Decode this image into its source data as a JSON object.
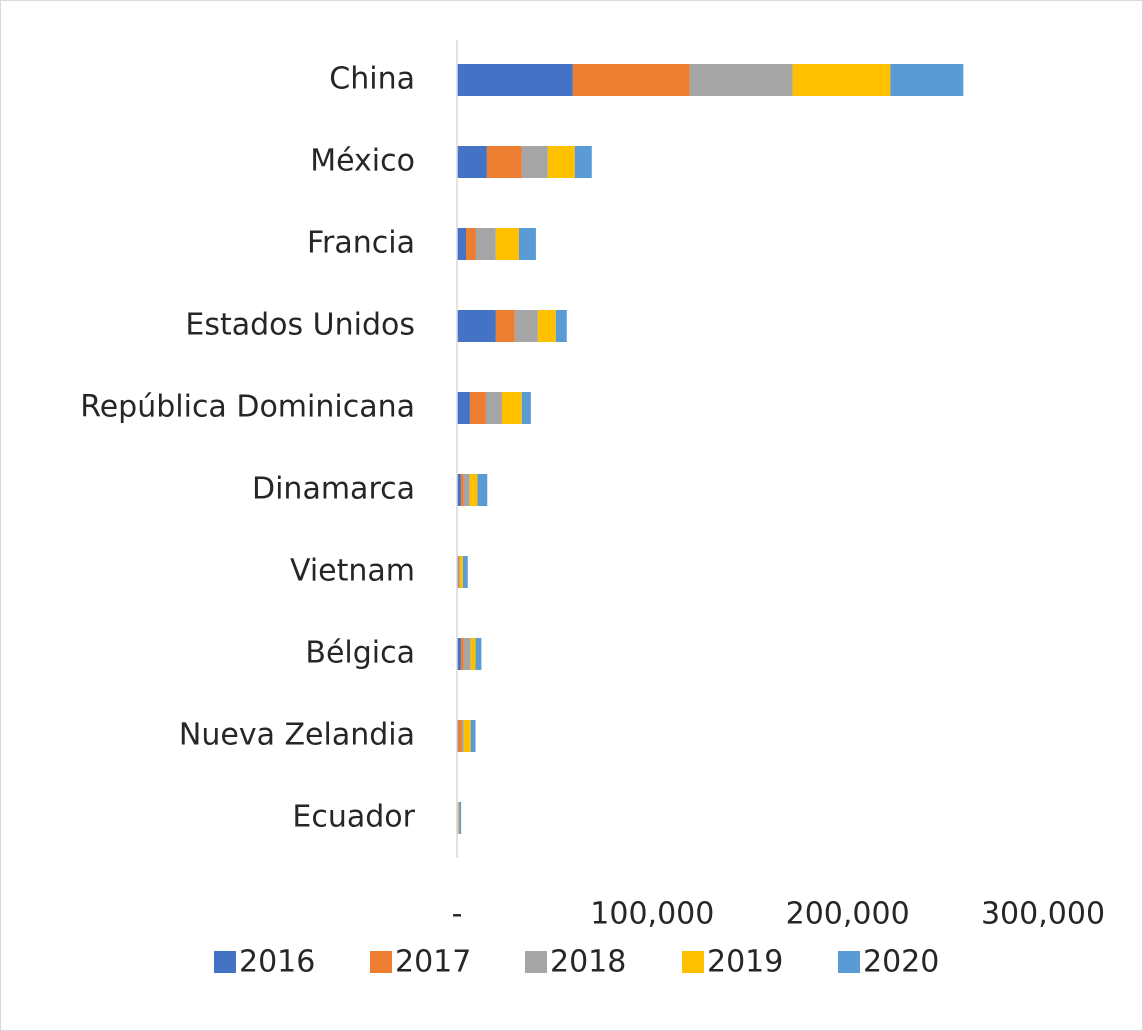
{
  "chart_data": {
    "type": "stacked_barh",
    "categories": [
      "China",
      "México",
      "Francia",
      "Estados Unidos",
      "República Dominicana",
      "Dinamarca",
      "Vietnam",
      "Bélgica",
      "Nueva Zelandia",
      "Ecuador"
    ],
    "series": [
      {
        "name": "2016",
        "color": "#4472c4",
        "values": [
          59300,
          15300,
          4600,
          19900,
          6600,
          2000,
          500,
          2000,
          500,
          300
        ]
      },
      {
        "name": "2017",
        "color": "#ed7d31",
        "values": [
          59800,
          17900,
          5100,
          9700,
          8200,
          1500,
          500,
          1500,
          2000,
          300
        ]
      },
      {
        "name": "2018",
        "color": "#a5a5a5",
        "values": [
          52700,
          13300,
          10200,
          11800,
          8200,
          3000,
          500,
          3500,
          1000,
          200
        ]
      },
      {
        "name": "2019",
        "color": "#ffc000",
        "values": [
          50100,
          13800,
          11800,
          9200,
          10200,
          4000,
          1500,
          2500,
          3500,
          300
        ]
      },
      {
        "name": "2020",
        "color": "#5b9bd5",
        "values": [
          37300,
          8700,
          8700,
          5600,
          4600,
          5000,
          2500,
          3000,
          2500,
          1000
        ]
      }
    ],
    "xlim": [
      0,
      300000
    ],
    "xticks": [
      {
        "value": 0,
        "label": "-"
      },
      {
        "value": 100000,
        "label": "100,000"
      },
      {
        "value": 200000,
        "label": "200,000"
      },
      {
        "value": 300000,
        "label": "300,000"
      }
    ],
    "legend": "bottom"
  }
}
